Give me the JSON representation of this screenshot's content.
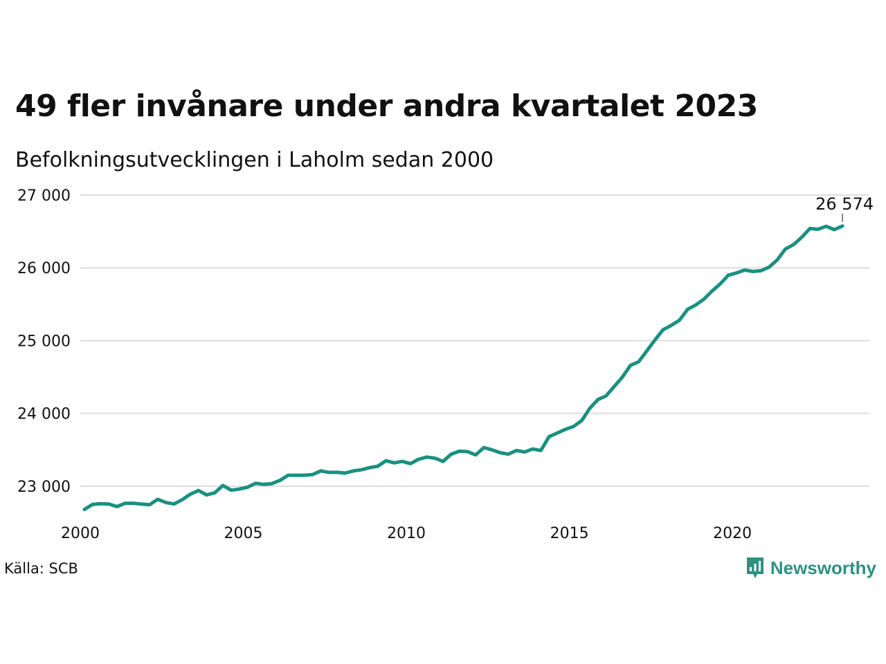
{
  "title": "49 fler invånare under andra kvartalet 2023",
  "subtitle": "Befolkningsutvecklingen i Laholm sedan 2000",
  "source": "Källa: SCB",
  "brand": {
    "name": "Newsworthy",
    "icon": "newsworthy-logo-icon",
    "color": "#2e9182"
  },
  "colors": {
    "line": "#1a9080",
    "grid": "#dddddd",
    "text": "#111111"
  },
  "chart_data": {
    "type": "line",
    "x_tick_labels": [
      "2000",
      "2005",
      "2010",
      "2015",
      "2020"
    ],
    "x_ticks": [
      2000,
      2005,
      2010,
      2015,
      2020
    ],
    "y_tick_labels": [
      "23 000",
      "24 000",
      "25 000",
      "26 000",
      "27 000"
    ],
    "y_ticks": [
      23000,
      24000,
      25000,
      26000,
      27000
    ],
    "xlim": [
      2000,
      2024.2
    ],
    "ylim": [
      22600,
      27000
    ],
    "grid": true,
    "last_value_label": "26 574",
    "series": [
      {
        "x": [
          2000.125,
          2000.375,
          2000.625,
          2000.875,
          2001.125,
          2001.375,
          2001.625,
          2001.875,
          2002.125,
          2002.375,
          2002.625,
          2002.875,
          2003.125,
          2003.375,
          2003.625,
          2003.875,
          2004.125,
          2004.375,
          2004.625,
          2004.875,
          2005.125,
          2005.375,
          2005.625,
          2005.875,
          2006.125,
          2006.375,
          2006.625,
          2006.875,
          2007.125,
          2007.375,
          2007.625,
          2007.875,
          2008.125,
          2008.375,
          2008.625,
          2008.875,
          2009.125,
          2009.375,
          2009.625,
          2009.875,
          2010.125,
          2010.375,
          2010.625,
          2010.875,
          2011.125,
          2011.375,
          2011.625,
          2011.875,
          2012.125,
          2012.375,
          2012.625,
          2012.875,
          2013.125,
          2013.375,
          2013.625,
          2013.875,
          2014.125,
          2014.375,
          2014.625,
          2014.875,
          2015.125,
          2015.375,
          2015.625,
          2015.875,
          2016.125,
          2016.375,
          2016.625,
          2016.875,
          2017.125,
          2017.375,
          2017.625,
          2017.875,
          2018.125,
          2018.375,
          2018.625,
          2018.875,
          2019.125,
          2019.375,
          2019.625,
          2019.875,
          2020.125,
          2020.375,
          2020.625,
          2020.875,
          2021.125,
          2021.375,
          2021.625,
          2021.875,
          2022.125,
          2022.375,
          2022.625,
          2022.875,
          2023.125,
          2023.375
        ],
        "values": [
          22680,
          22750,
          22760,
          22755,
          22720,
          22765,
          22765,
          22755,
          22745,
          22820,
          22775,
          22755,
          22815,
          22890,
          22940,
          22880,
          22910,
          23010,
          22945,
          22960,
          22985,
          23040,
          23025,
          23035,
          23080,
          23150,
          23150,
          23150,
          23160,
          23210,
          23190,
          23190,
          23180,
          23210,
          23225,
          23255,
          23275,
          23350,
          23320,
          23340,
          23310,
          23370,
          23400,
          23385,
          23340,
          23440,
          23480,
          23475,
          23430,
          23530,
          23500,
          23460,
          23440,
          23490,
          23470,
          23510,
          23490,
          23680,
          23730,
          23780,
          23820,
          23900,
          24070,
          24190,
          24240,
          24370,
          24500,
          24660,
          24710,
          24860,
          25010,
          25150,
          25210,
          25280,
          25430,
          25490,
          25570,
          25680,
          25780,
          25900,
          25930,
          25970,
          25950,
          25960,
          26010,
          26110,
          26260,
          26320,
          26420,
          26540,
          26530,
          26570,
          26525,
          26574
        ]
      }
    ]
  }
}
